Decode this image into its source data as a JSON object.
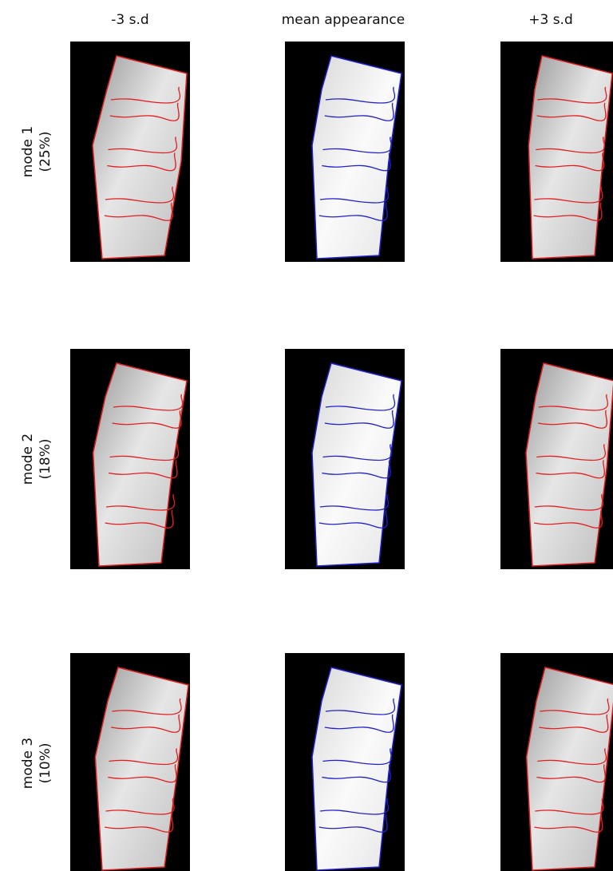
{
  "columns": [
    "-3 s.d",
    "mean appearance",
    "+3 s.d"
  ],
  "rows": [
    {
      "label": "mode 1",
      "percent": "(25%)"
    },
    {
      "label": "mode 2",
      "percent": "(18%)"
    },
    {
      "label": "mode 3",
      "percent": "(10%)"
    }
  ]
}
